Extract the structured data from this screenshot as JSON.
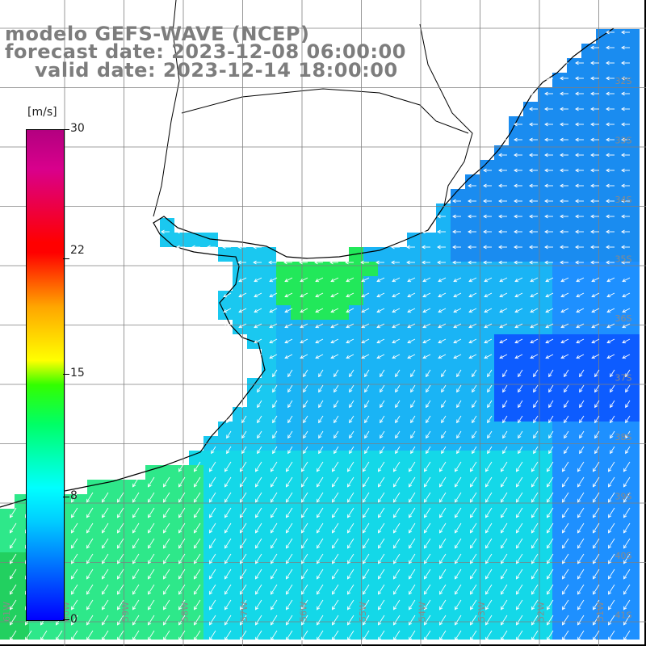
{
  "title": {
    "line1": "modelo GEFS-WAVE (NCEP)",
    "line2": "forecast date: 2023-12-08 06:00:00",
    "line3": "valid date: 2023-12-14 18:00:00"
  },
  "legend": {
    "unit": "[m/s]",
    "ticks": [
      "30",
      "22",
      "15",
      "8",
      "0"
    ],
    "tick_values": [
      30,
      22,
      15,
      8,
      0
    ],
    "range": [
      0,
      30
    ],
    "colors": [
      "#0000ff",
      "#0066ff",
      "#00ccff",
      "#00ffff",
      "#00ff66",
      "#33ff00",
      "#ffff00",
      "#ffa500",
      "#ff0000",
      "#d9008c",
      "#b30080"
    ]
  },
  "lat_labels": [
    "32S",
    "33S",
    "34S",
    "35S",
    "36S",
    "37S",
    "38S",
    "39S",
    "40S",
    "41S"
  ],
  "lon_labels": [
    "61W",
    "60W",
    "59W",
    "58W",
    "57W",
    "56W",
    "55W",
    "54W",
    "53W",
    "52W",
    "51W"
  ],
  "map_style": {
    "land": "#ffffff",
    "grid": "#7f7f7f",
    "coast": "#000000",
    "arrow": "#ffffff",
    "label": "#8a8a8a"
  }
}
